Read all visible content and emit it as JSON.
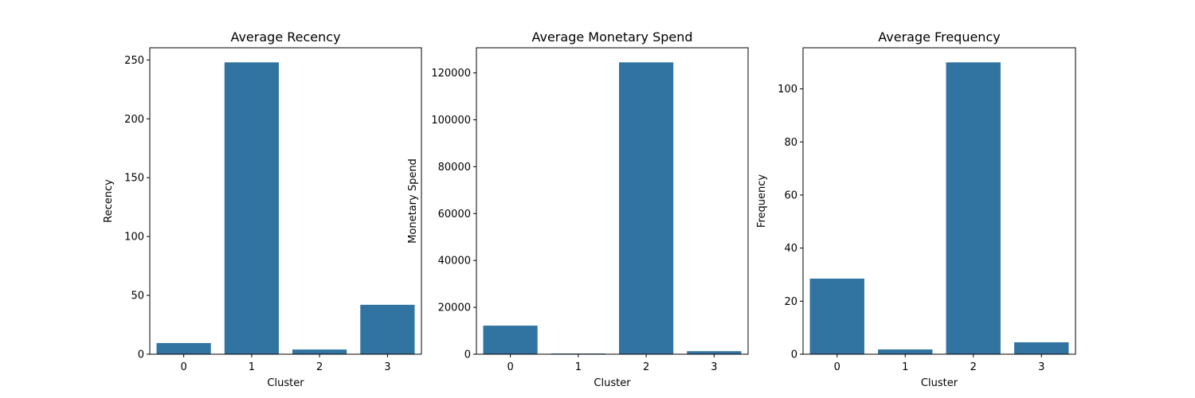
{
  "chart_data": [
    {
      "type": "bar",
      "title": "Average Recency",
      "xlabel": "Cluster",
      "ylabel": "Recency",
      "categories": [
        "0",
        "1",
        "2",
        "3"
      ],
      "values": [
        9.5,
        248,
        4,
        42
      ],
      "ylim": [
        0,
        260.4
      ],
      "yticks": [
        0,
        50,
        100,
        150,
        200,
        250
      ],
      "bar_color": "#3274a1",
      "grid": false,
      "legend": "none"
    },
    {
      "type": "bar",
      "title": "Average Monetary Spend",
      "xlabel": "Cluster",
      "ylabel": "Monetary Spend",
      "categories": [
        "0",
        "1",
        "2",
        "3"
      ],
      "values": [
        12200,
        300,
        124500,
        1300
      ],
      "ylim": [
        0,
        130725
      ],
      "yticks": [
        0,
        20000,
        40000,
        60000,
        80000,
        100000,
        120000
      ],
      "bar_color": "#3274a1",
      "grid": false,
      "legend": "none"
    },
    {
      "type": "bar",
      "title": "Average Frequency",
      "xlabel": "Cluster",
      "ylabel": "Frequency",
      "categories": [
        "0",
        "1",
        "2",
        "3"
      ],
      "values": [
        28.5,
        1.8,
        110,
        4.5
      ],
      "ylim": [
        0,
        115.5
      ],
      "yticks": [
        0,
        20,
        40,
        60,
        80,
        100
      ],
      "bar_color": "#3274a1",
      "grid": false,
      "legend": "none"
    }
  ]
}
